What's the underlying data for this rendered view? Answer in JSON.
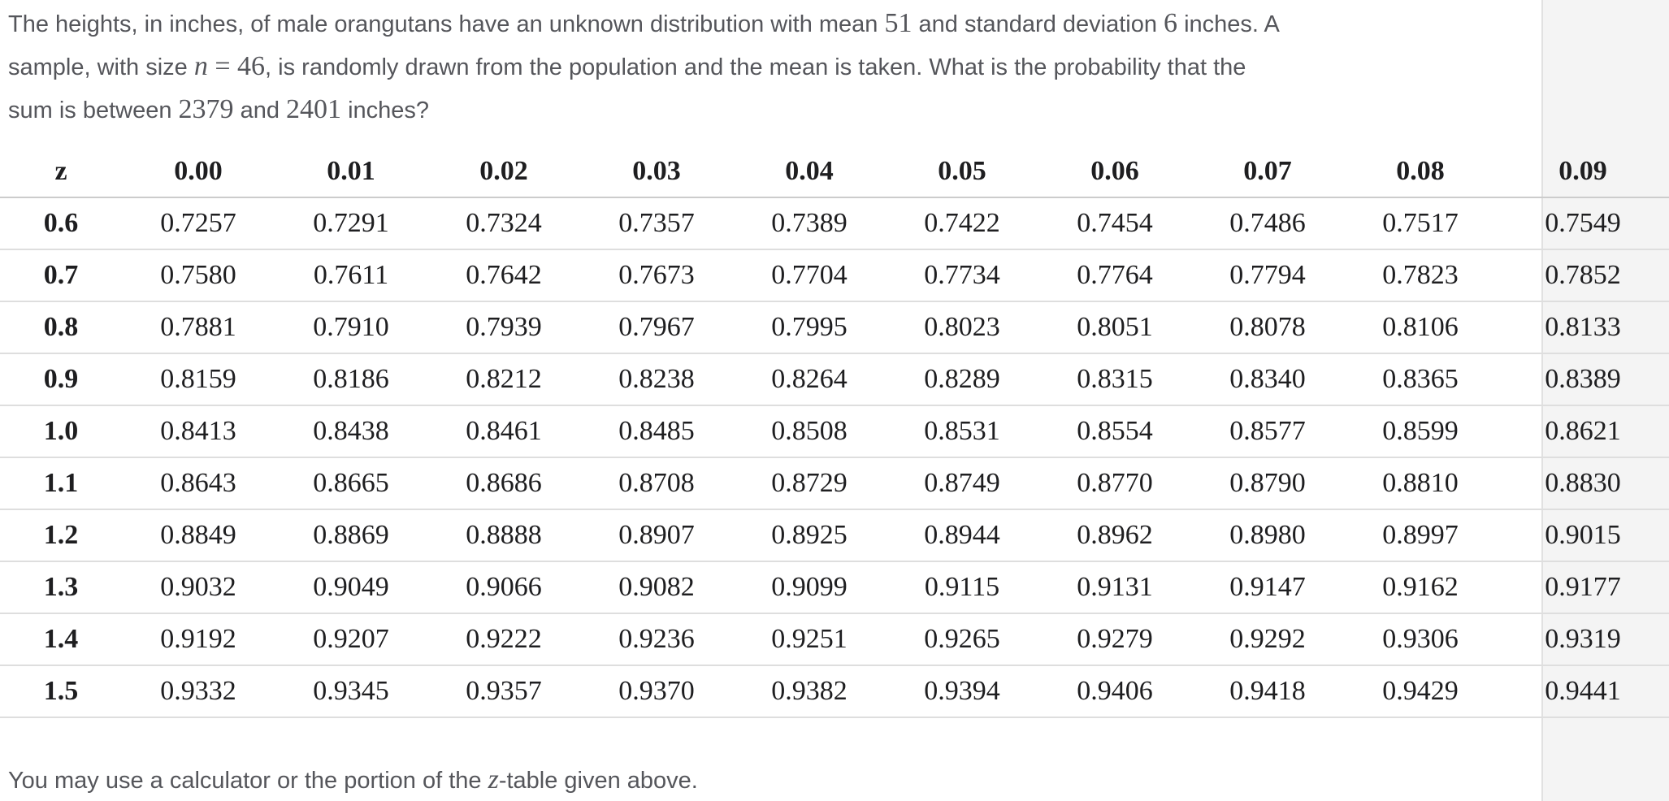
{
  "page": {
    "background": "#ffffff",
    "right_strip_color": "#f4f4f4",
    "divider_color": "#e1e1e1",
    "gridline_color": "#dedede",
    "header_line_color": "#cccccc",
    "body_text_color": "#55565b",
    "table_text_color": "#1e1e20"
  },
  "question": {
    "full_text": "The heights, in inches, of male orangutans have an unknown distribution with mean 51 and standard deviation 6 inches. A sample, with size n = 46, is randomly drawn from the population and the mean is taken. What is the probability that the sum is between 2379 and 2401 inches?",
    "mean": "51",
    "standard_deviation": "6",
    "sample_size": "46",
    "sum_lower": "2379",
    "sum_upper": "2401",
    "lines": [
      [
        {
          "style": "sans",
          "text": "The heights, in inches, of male orangutans have an unknown distribution with mean "
        },
        {
          "style": "math",
          "text": "51"
        },
        {
          "style": "sans",
          "text": " and standard deviation "
        },
        {
          "style": "math",
          "text": "6"
        },
        {
          "style": "sans",
          "text": " inches. A"
        }
      ],
      [
        {
          "style": "sans",
          "text": "sample, with size "
        },
        {
          "style": "math-italic",
          "text": "n"
        },
        {
          "style": "math",
          "text": " = 46"
        },
        {
          "style": "sans",
          "text": ", is randomly drawn from the population and the mean is taken. What is the probability that the"
        }
      ],
      [
        {
          "style": "sans",
          "text": "sum is between "
        },
        {
          "style": "math",
          "text": "2379"
        },
        {
          "style": "sans",
          "text": " and "
        },
        {
          "style": "math",
          "text": "2401"
        },
        {
          "style": "sans",
          "text": " inches?"
        }
      ]
    ]
  },
  "ztable": {
    "header": [
      "z",
      "0.00",
      "0.01",
      "0.02",
      "0.03",
      "0.04",
      "0.05",
      "0.06",
      "0.07",
      "0.08",
      "0.09"
    ],
    "rows": [
      {
        "z": "0.6",
        "values": [
          "0.7257",
          "0.7291",
          "0.7324",
          "0.7357",
          "0.7389",
          "0.7422",
          "0.7454",
          "0.7486",
          "0.7517",
          "0.7549"
        ]
      },
      {
        "z": "0.7",
        "values": [
          "0.7580",
          "0.7611",
          "0.7642",
          "0.7673",
          "0.7704",
          "0.7734",
          "0.7764",
          "0.7794",
          "0.7823",
          "0.7852"
        ]
      },
      {
        "z": "0.8",
        "values": [
          "0.7881",
          "0.7910",
          "0.7939",
          "0.7967",
          "0.7995",
          "0.8023",
          "0.8051",
          "0.8078",
          "0.8106",
          "0.8133"
        ]
      },
      {
        "z": "0.9",
        "values": [
          "0.8159",
          "0.8186",
          "0.8212",
          "0.8238",
          "0.8264",
          "0.8289",
          "0.8315",
          "0.8340",
          "0.8365",
          "0.8389"
        ]
      },
      {
        "z": "1.0",
        "values": [
          "0.8413",
          "0.8438",
          "0.8461",
          "0.8485",
          "0.8508",
          "0.8531",
          "0.8554",
          "0.8577",
          "0.8599",
          "0.8621"
        ]
      },
      {
        "z": "1.1",
        "values": [
          "0.8643",
          "0.8665",
          "0.8686",
          "0.8708",
          "0.8729",
          "0.8749",
          "0.8770",
          "0.8790",
          "0.8810",
          "0.8830"
        ]
      },
      {
        "z": "1.2",
        "values": [
          "0.8849",
          "0.8869",
          "0.8888",
          "0.8907",
          "0.8925",
          "0.8944",
          "0.8962",
          "0.8980",
          "0.8997",
          "0.9015"
        ]
      },
      {
        "z": "1.3",
        "values": [
          "0.9032",
          "0.9049",
          "0.9066",
          "0.9082",
          "0.9099",
          "0.9115",
          "0.9131",
          "0.9147",
          "0.9162",
          "0.9177"
        ]
      },
      {
        "z": "1.4",
        "values": [
          "0.9192",
          "0.9207",
          "0.9222",
          "0.9236",
          "0.9251",
          "0.9265",
          "0.9279",
          "0.9292",
          "0.9306",
          "0.9319"
        ]
      },
      {
        "z": "1.5",
        "values": [
          "0.9332",
          "0.9345",
          "0.9357",
          "0.9370",
          "0.9382",
          "0.9394",
          "0.9406",
          "0.9418",
          "0.9429",
          "0.9441"
        ]
      }
    ]
  },
  "footer": {
    "full_text": "You may use a calculator or the portion of the z-table given above.",
    "segments": [
      {
        "style": "sans",
        "text": "You may use a calculator or the portion of the "
      },
      {
        "style": "math-italic",
        "text": "z"
      },
      {
        "style": "sans",
        "text": "-table given above."
      }
    ]
  }
}
